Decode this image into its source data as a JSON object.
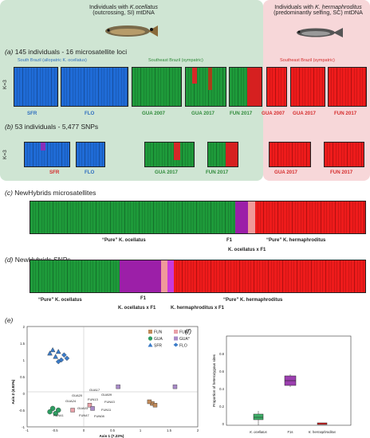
{
  "header": {
    "left_line1": "Individuals with ",
    "left_line1_it": "K.ocellatus",
    "left_line2": "(outcrossing, SI) mtDNA",
    "right_line1": "Individuals with ",
    "right_line1_it": "K. hermaphroditus",
    "right_line2": "(predominantly selfing, SC) mtDNA"
  },
  "panel_a": {
    "letter": "(a)",
    "title": "145 individuals - 16 microsatellite loci",
    "k_label": "K=3",
    "group_south": "South Brazil (allopatric K. ocellatus)",
    "group_southeast": "Southeast Brazil (sympatric)",
    "group_southeast_red": "Southeast Brazil (sympatric)",
    "pops": [
      "SFR",
      "FLO",
      "GUA 2007",
      "GUA 2017",
      "FUN 2017",
      "GUA 2007",
      "GUA 2017",
      "FUN 2017"
    ]
  },
  "panel_b": {
    "letter": "(b)",
    "title": "53 individuals - 5,477 SNPs",
    "k_label": "K=3",
    "pops": [
      "SFR",
      "FLO",
      "GUA 2017",
      "FUN 2017",
      "GUA 2017",
      "FUN 2017"
    ]
  },
  "panel_c": {
    "letter": "(c)",
    "title": "NewHybrids microsatellites",
    "label_pure_oc": "“Pure” K. ocellatus",
    "label_f1": "F1",
    "label_pure_her": "“Pure” K. hermaphroditus",
    "label_back": "K. ocellatus x F1"
  },
  "panel_d": {
    "letter": "(d)",
    "title": "NewHybrids SNPs",
    "label_pure_oc": "“Pure” K. ocellatus",
    "label_f1": "F1",
    "label_back_oc": "K. ocellatus x F1",
    "label_back_her": "K. hermaphroditus x F1",
    "label_pure_her": "“Pure” K. hermaphroditus"
  },
  "panel_e": {
    "letter": "(e)",
    "xlabel": "Axis 1 (7.23%)",
    "ylabel": "Axis 2 (4.93%)",
    "legend": [
      "FUN",
      "FUN*",
      "GUA",
      "GUA*",
      "SFR",
      "FLO"
    ],
    "point_labels": [
      "GUA20",
      "GUA17",
      "GUA09",
      "GUA24",
      "FUN13",
      "FUN43",
      "GUA03",
      "FUN11",
      "FUN41",
      "FUN47",
      "FUN08"
    ],
    "xticks": [
      "-1",
      "-0.5",
      "0",
      "0.5",
      "1",
      "1.5",
      "2"
    ],
    "yticks": [
      "2",
      "1.5",
      "1",
      "0.5",
      "0",
      "-0.5",
      "-1"
    ]
  },
  "panel_f": {
    "letter": "(f)",
    "ylabel": "Proportion of heterozygous sites",
    "categories": [
      "K. ocellatus",
      "F1s",
      "K. hermaphroditus"
    ],
    "yticks": [
      "0.8",
      "0.6",
      "0.4",
      "0.2",
      "0"
    ]
  },
  "chart_data": {
    "type": "scatter",
    "xlabel": "Axis 1 (7.23%)",
    "ylabel": "Axis 2 (4.93%)",
    "xlim": [
      -1,
      2
    ],
    "ylim": [
      -1,
      2
    ],
    "series": [
      {
        "name": "SFR",
        "points": [
          [
            -0.55,
            1.3
          ],
          [
            -0.6,
            1.2
          ],
          [
            -0.5,
            1.1
          ],
          [
            -0.45,
            1.25
          ]
        ]
      },
      {
        "name": "FLO",
        "points": [
          [
            -0.4,
            1.0
          ],
          [
            -0.35,
            1.15
          ],
          [
            -0.45,
            0.95
          ],
          [
            -0.3,
            1.05
          ]
        ]
      },
      {
        "name": "GUA",
        "points": [
          [
            -0.55,
            -0.45
          ],
          [
            -0.6,
            -0.55
          ],
          [
            -0.5,
            -0.6
          ],
          [
            -0.45,
            -0.5
          ]
        ]
      },
      {
        "name": "FUN",
        "points": [
          [
            1.2,
            -0.3
          ],
          [
            1.25,
            -0.35
          ],
          [
            1.15,
            -0.25
          ]
        ]
      },
      {
        "name": "FUN*",
        "points": [
          [
            0.1,
            -0.35
          ],
          [
            -0.2,
            -0.5
          ]
        ]
      },
      {
        "name": "GUA*",
        "points": [
          [
            0.15,
            -0.45
          ],
          [
            0.6,
            0.2
          ],
          [
            1.6,
            0.2
          ]
        ]
      }
    ]
  }
}
